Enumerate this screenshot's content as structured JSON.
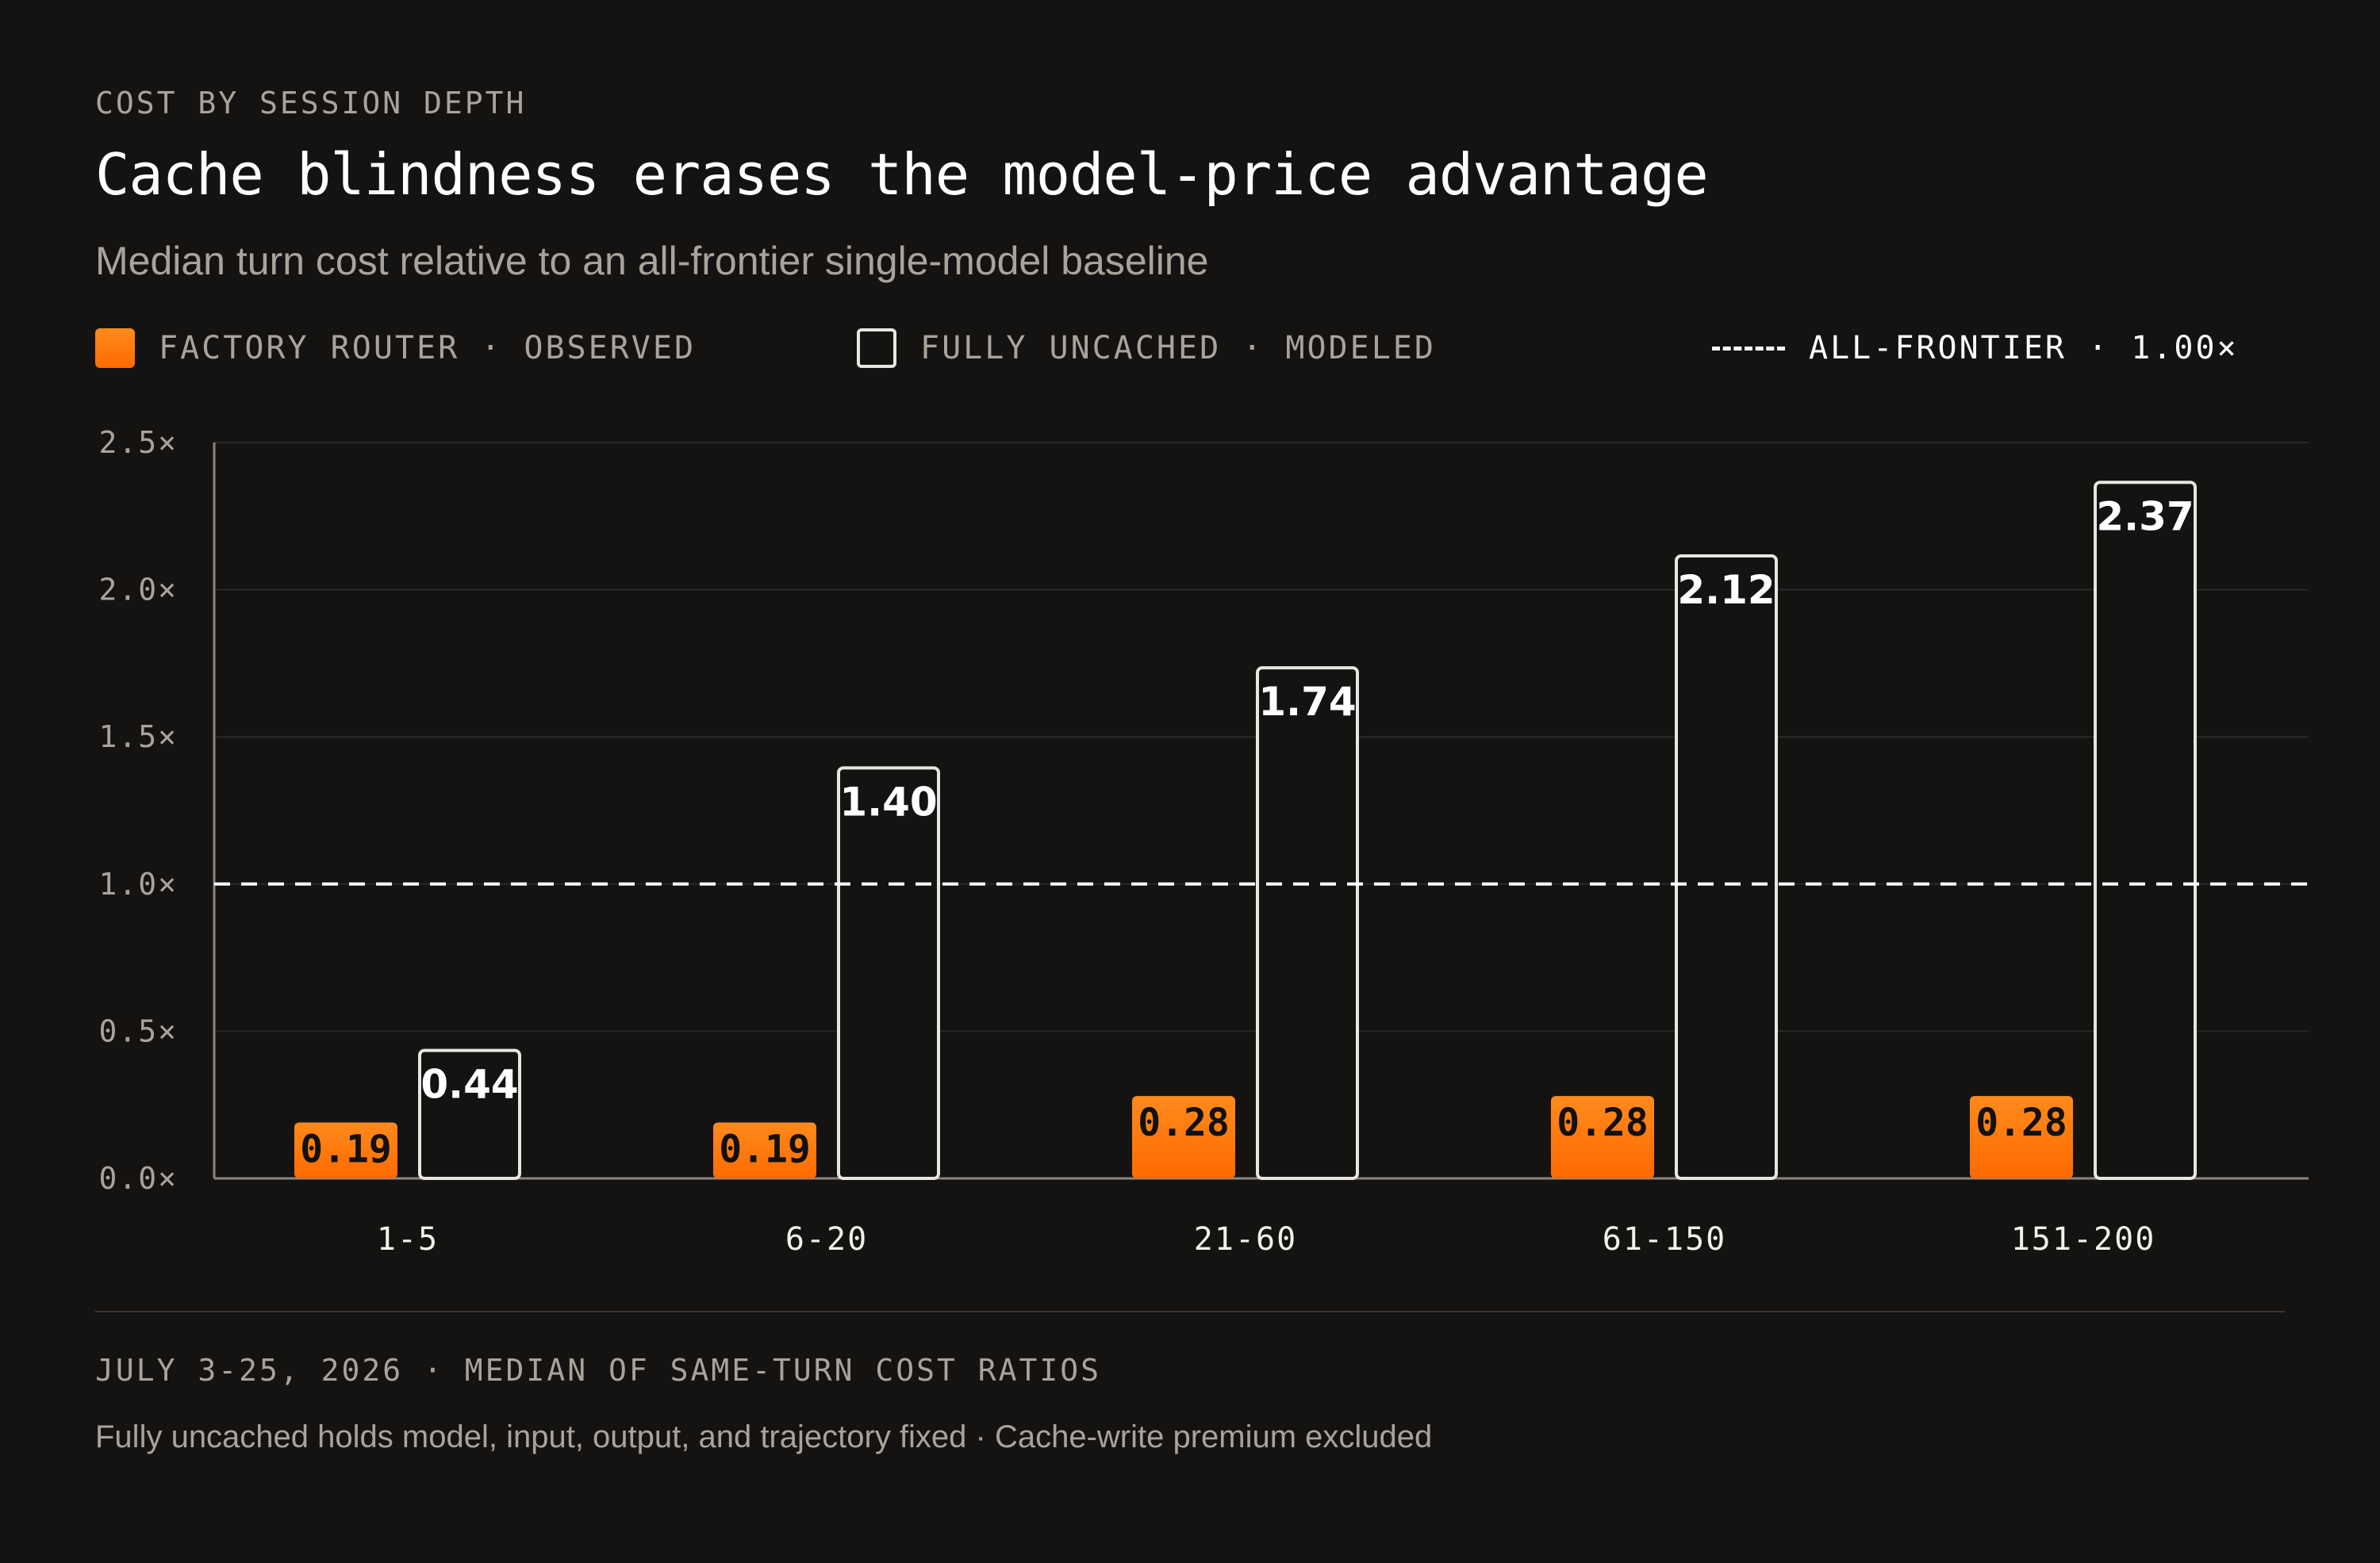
{
  "header": {
    "eyebrow": "COST BY SESSION DEPTH",
    "title": "Cache blindness erases the model-price advantage",
    "subtitle": "Median turn cost relative to an all-frontier single-model baseline"
  },
  "legend": {
    "observed": "FACTORY ROUTER · OBSERVED",
    "modeled": "FULLY UNCACHED · MODELED",
    "baseline": "ALL-FRONTIER · 1.00×"
  },
  "colors": {
    "background": "#141312",
    "observed": "#ff7a0a",
    "modeled_stroke": "#e8e6e2",
    "baseline": "#ffffff",
    "muted_text": "#a9a39b"
  },
  "chart_data": {
    "type": "bar",
    "categories": [
      "1-5",
      "6-20",
      "21-60",
      "61-150",
      "151-200"
    ],
    "series": [
      {
        "name": "FACTORY ROUTER · OBSERVED",
        "values": [
          0.19,
          0.19,
          0.28,
          0.28,
          0.28
        ],
        "labels": [
          "0.19",
          "0.19",
          "0.28",
          "0.28",
          "0.28"
        ]
      },
      {
        "name": "FULLY UNCACHED · MODELED",
        "values": [
          0.44,
          1.4,
          1.74,
          2.12,
          2.37
        ],
        "labels": [
          "0.44",
          "1.40",
          "1.74",
          "2.12",
          "2.37"
        ]
      }
    ],
    "reference_line": {
      "value": 1.0
    },
    "ylim": [
      0,
      2.5
    ],
    "yticks": [
      0,
      0.5,
      1.0,
      1.5,
      2.0,
      2.5
    ],
    "ytick_labels": [
      "0.0×",
      "0.5×",
      "1.0×",
      "1.5×",
      "2.0×",
      "2.5×"
    ],
    "grid": true,
    "legend_position": "top"
  },
  "footer": {
    "line1": "JULY 3-25, 2026 · MEDIAN OF SAME-TURN COST RATIOS",
    "line2": "Fully uncached holds model, input, output, and trajectory fixed · Cache-write premium excluded"
  }
}
